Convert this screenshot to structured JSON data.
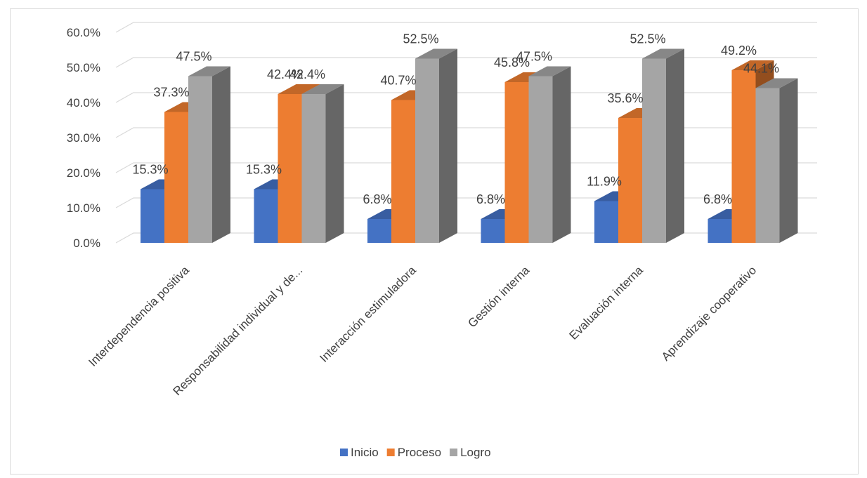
{
  "chart_data": {
    "type": "bar",
    "title": "",
    "xlabel": "",
    "ylabel": "",
    "categories": [
      "Interdependencia positiva",
      "Responsabilidad individual y de...",
      "Interacción estimuladora",
      "Gestión interna",
      "Evaluación interna",
      "Aprendizaje cooperativo"
    ],
    "series": [
      {
        "name": "Inicio",
        "values": [
          15.3,
          15.3,
          6.8,
          6.8,
          11.9,
          6.8
        ],
        "labels": [
          "15.3%",
          "15.3%",
          "6.8%",
          "6.8%",
          "11.9%",
          "6.8%"
        ],
        "color": "#4472c4"
      },
      {
        "name": "Proceso",
        "values": [
          37.3,
          42.4,
          40.7,
          45.8,
          35.6,
          49.2
        ],
        "labels": [
          "37.3%",
          "42.4%",
          "40.7%",
          "45.8%",
          "35.6%",
          "49.2%"
        ],
        "color": "#ed7d31"
      },
      {
        "name": "Logro",
        "values": [
          47.5,
          42.4,
          52.5,
          47.5,
          52.5,
          44.1
        ],
        "labels": [
          "47.5%",
          "42.4%",
          "52.5%",
          "47.5%",
          "52.5%",
          "44.1%"
        ],
        "color": "#a5a5a5"
      }
    ],
    "ylim": [
      0,
      60
    ],
    "y_ticks": [
      "0.0%",
      "10.0%",
      "20.0%",
      "30.0%",
      "40.0%",
      "50.0%",
      "60.0%"
    ],
    "y_tick_values": [
      0,
      10,
      20,
      30,
      40,
      50,
      60
    ],
    "grid": true,
    "style": "3d-clustered-column",
    "legend_position": "bottom"
  }
}
